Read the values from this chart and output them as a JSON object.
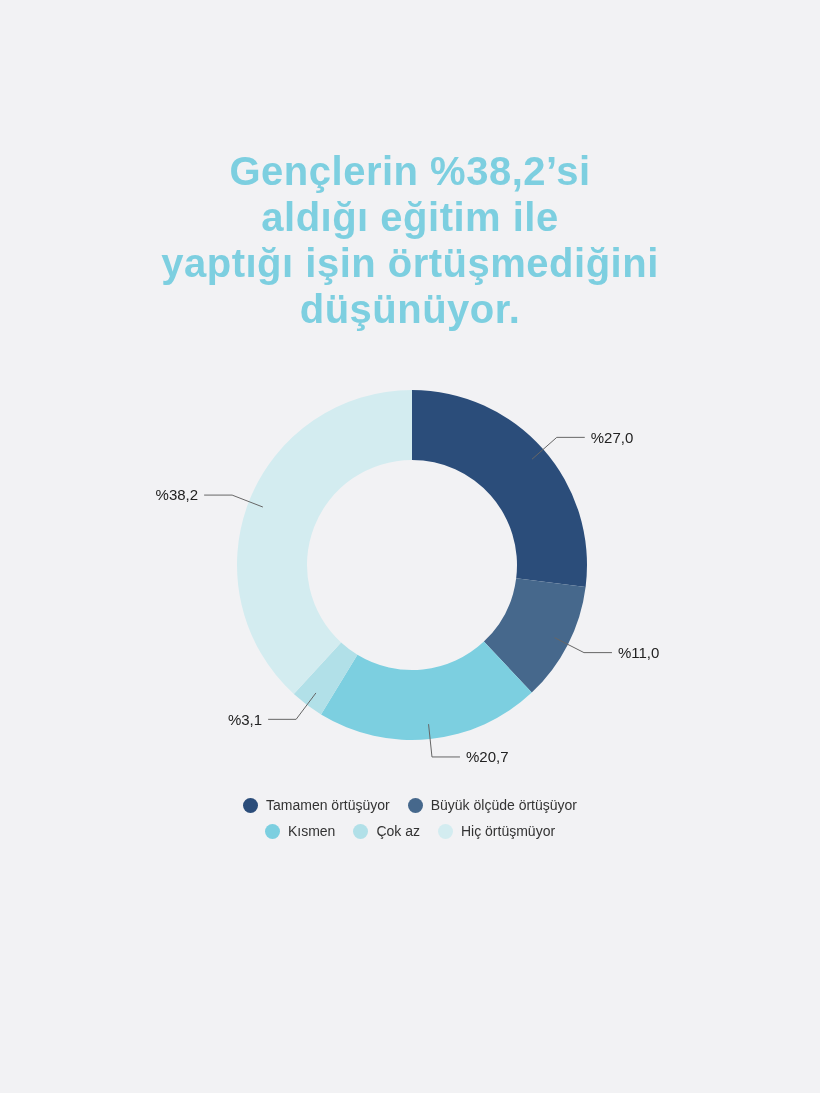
{
  "chart_data": {
    "type": "donut",
    "title": "Gençlerin %38,2’si\naldığı eğitim ile\nyaptığı işin örtüşmediğini\ndüşünüyor.",
    "categories": [
      "Tamamen örtüşüyor",
      "Büyük ölçüde örtüşüyor",
      "Kısmen",
      "Çok az",
      "Hiç örtüşmüyor"
    ],
    "values": [
      27.0,
      11.0,
      20.7,
      3.1,
      38.2
    ],
    "colors": [
      "#2b4d7a",
      "#46688c",
      "#7ccfe0",
      "#b1e0e8",
      "#d3ecf0"
    ],
    "value_labels": [
      "%27,0",
      "%11,0",
      "%20,7",
      "%3,1",
      "%38,2"
    ],
    "legend": "bottom"
  }
}
